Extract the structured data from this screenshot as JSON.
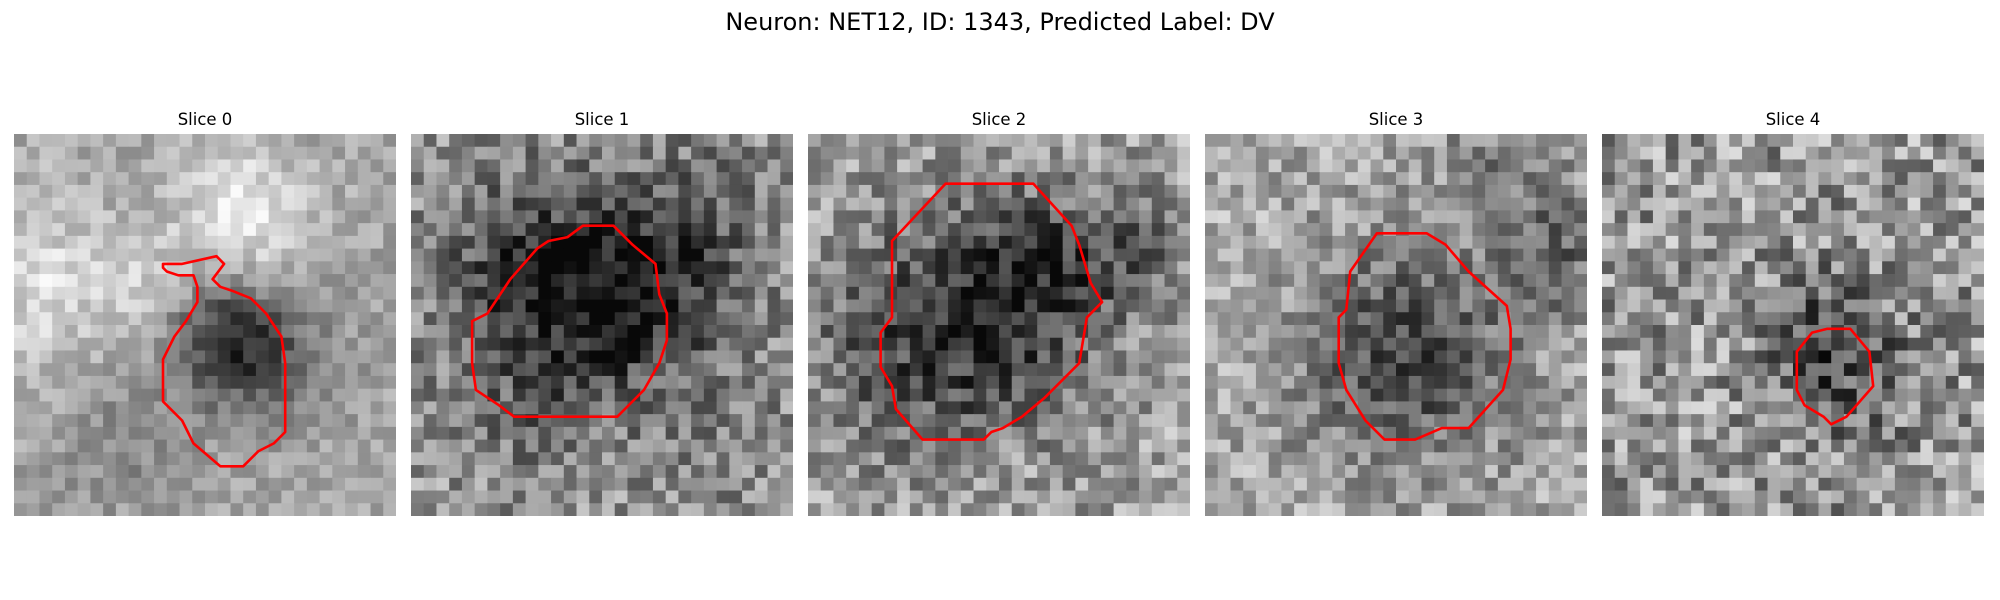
{
  "figure": {
    "title": "Neuron: NET12, ID: 1343, Predicted Label: DV",
    "contour_color": "#ff0000"
  },
  "panels": [
    {
      "title": "Slice 0",
      "seed": 11,
      "blobs": [
        [
          0.62,
          0.58,
          0.13,
          0.11,
          -95
        ],
        [
          0.55,
          0.5,
          0.09,
          0.09,
          -55
        ],
        [
          0.25,
          0.38,
          0.14,
          0.12,
          45
        ],
        [
          0.6,
          0.2,
          0.12,
          0.12,
          70
        ],
        [
          0.3,
          0.8,
          0.14,
          0.12,
          -30
        ],
        [
          0.05,
          0.4,
          0.07,
          0.2,
          40
        ]
      ],
      "noise": 30,
      "base": 165,
      "contour": [
        [
          0.4,
          0.36
        ],
        [
          0.39,
          0.35
        ],
        [
          0.39,
          0.34
        ],
        [
          0.44,
          0.34
        ],
        [
          0.53,
          0.32
        ],
        [
          0.55,
          0.34
        ],
        [
          0.52,
          0.38
        ],
        [
          0.54,
          0.4
        ],
        [
          0.57,
          0.41
        ],
        [
          0.62,
          0.43
        ],
        [
          0.66,
          0.47
        ],
        [
          0.7,
          0.53
        ],
        [
          0.71,
          0.6
        ],
        [
          0.71,
          0.78
        ],
        [
          0.68,
          0.81
        ],
        [
          0.64,
          0.83
        ],
        [
          0.6,
          0.87
        ],
        [
          0.54,
          0.87
        ],
        [
          0.47,
          0.81
        ],
        [
          0.44,
          0.75
        ],
        [
          0.39,
          0.7
        ],
        [
          0.39,
          0.59
        ],
        [
          0.42,
          0.53
        ],
        [
          0.45,
          0.49
        ],
        [
          0.48,
          0.44
        ],
        [
          0.48,
          0.4
        ],
        [
          0.47,
          0.37
        ],
        [
          0.43,
          0.37
        ]
      ]
    },
    {
      "title": "Slice 1",
      "seed": 22,
      "blobs": [
        [
          0.45,
          0.45,
          0.22,
          0.2,
          -110
        ],
        [
          0.6,
          0.35,
          0.13,
          0.15,
          -60
        ],
        [
          0.25,
          0.3,
          0.12,
          0.15,
          -35
        ],
        [
          0.8,
          0.25,
          0.1,
          0.2,
          -30
        ],
        [
          0.3,
          0.75,
          0.12,
          0.12,
          -20
        ],
        [
          0.85,
          0.8,
          0.1,
          0.12,
          -20
        ]
      ],
      "noise": 55,
      "base": 150,
      "contour": [
        [
          0.2,
          0.47
        ],
        [
          0.26,
          0.38
        ],
        [
          0.33,
          0.3
        ],
        [
          0.36,
          0.28
        ],
        [
          0.41,
          0.27
        ],
        [
          0.45,
          0.24
        ],
        [
          0.53,
          0.24
        ],
        [
          0.58,
          0.29
        ],
        [
          0.64,
          0.34
        ],
        [
          0.65,
          0.42
        ],
        [
          0.67,
          0.47
        ],
        [
          0.67,
          0.54
        ],
        [
          0.65,
          0.6
        ],
        [
          0.61,
          0.67
        ],
        [
          0.54,
          0.74
        ],
        [
          0.27,
          0.74
        ],
        [
          0.23,
          0.71
        ],
        [
          0.17,
          0.67
        ],
        [
          0.16,
          0.6
        ],
        [
          0.16,
          0.49
        ]
      ]
    },
    {
      "title": "Slice 2",
      "seed": 33,
      "blobs": [
        [
          0.45,
          0.52,
          0.22,
          0.24,
          -110
        ],
        [
          0.6,
          0.35,
          0.13,
          0.12,
          -60
        ],
        [
          0.85,
          0.3,
          0.12,
          0.12,
          -50
        ],
        [
          0.15,
          0.55,
          0.12,
          0.18,
          -35
        ],
        [
          0.5,
          0.85,
          0.12,
          0.08,
          25
        ]
      ],
      "noise": 55,
      "base": 165,
      "contour": [
        [
          0.22,
          0.28
        ],
        [
          0.36,
          0.13
        ],
        [
          0.59,
          0.13
        ],
        [
          0.69,
          0.24
        ],
        [
          0.71,
          0.29
        ],
        [
          0.74,
          0.39
        ],
        [
          0.77,
          0.44
        ],
        [
          0.73,
          0.48
        ],
        [
          0.71,
          0.6
        ],
        [
          0.62,
          0.69
        ],
        [
          0.56,
          0.74
        ],
        [
          0.51,
          0.77
        ],
        [
          0.48,
          0.78
        ],
        [
          0.46,
          0.8
        ],
        [
          0.3,
          0.8
        ],
        [
          0.23,
          0.72
        ],
        [
          0.22,
          0.66
        ],
        [
          0.19,
          0.61
        ],
        [
          0.19,
          0.52
        ],
        [
          0.22,
          0.48
        ]
      ]
    },
    {
      "title": "Slice 3",
      "seed": 44,
      "blobs": [
        [
          0.52,
          0.58,
          0.2,
          0.2,
          -100
        ],
        [
          0.9,
          0.3,
          0.1,
          0.12,
          -70
        ],
        [
          0.75,
          0.05,
          0.1,
          0.08,
          -40
        ]
      ],
      "noise": 50,
      "base": 170,
      "contour": [
        [
          0.38,
          0.36
        ],
        [
          0.45,
          0.26
        ],
        [
          0.58,
          0.26
        ],
        [
          0.63,
          0.29
        ],
        [
          0.69,
          0.36
        ],
        [
          0.79,
          0.45
        ],
        [
          0.8,
          0.51
        ],
        [
          0.8,
          0.59
        ],
        [
          0.78,
          0.67
        ],
        [
          0.69,
          0.77
        ],
        [
          0.62,
          0.77
        ],
        [
          0.55,
          0.8
        ],
        [
          0.47,
          0.8
        ],
        [
          0.42,
          0.75
        ],
        [
          0.37,
          0.67
        ],
        [
          0.35,
          0.6
        ],
        [
          0.35,
          0.48
        ],
        [
          0.37,
          0.46
        ]
      ]
    },
    {
      "title": "Slice 4",
      "seed": 55,
      "blobs": [
        [
          0.63,
          0.6,
          0.12,
          0.14,
          -70
        ],
        [
          0.55,
          0.5,
          0.08,
          0.08,
          -40
        ]
      ],
      "noise": 70,
      "base": 150,
      "contour": [
        [
          0.55,
          0.52
        ],
        [
          0.59,
          0.51
        ],
        [
          0.65,
          0.51
        ],
        [
          0.7,
          0.57
        ],
        [
          0.71,
          0.66
        ],
        [
          0.64,
          0.74
        ],
        [
          0.6,
          0.76
        ],
        [
          0.58,
          0.74
        ],
        [
          0.53,
          0.71
        ],
        [
          0.51,
          0.67
        ],
        [
          0.51,
          0.57
        ]
      ]
    }
  ]
}
